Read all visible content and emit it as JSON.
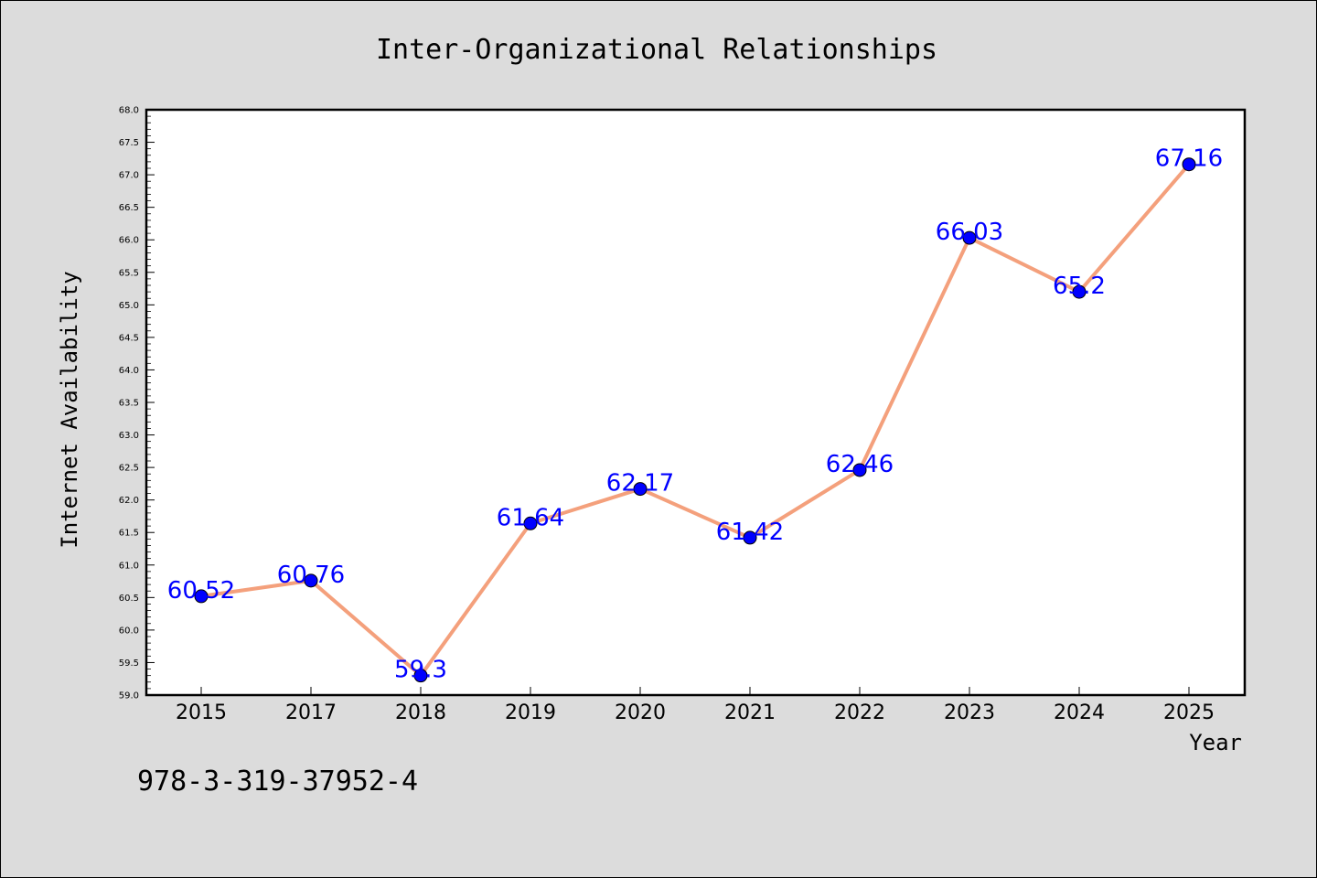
{
  "chart_data": {
    "type": "line",
    "title": "Inter-Organizational Relationships",
    "xlabel": "Year",
    "ylabel": "Internet Availability",
    "categories": [
      "2015",
      "2017",
      "2018",
      "2019",
      "2020",
      "2021",
      "2022",
      "2023",
      "2024",
      "2025"
    ],
    "series": [
      {
        "values": [
          60.52,
          60.76,
          59.3,
          61.64,
          62.17,
          61.42,
          62.46,
          66.03,
          65.2,
          67.16
        ],
        "data_labels": [
          "60.52",
          "60.76",
          "59.3",
          "61.64",
          "62.17",
          "61.42",
          "62.46",
          "66.03",
          "65.2",
          "67.16"
        ]
      }
    ],
    "ylim": [
      59.0,
      68.0
    ],
    "yticks": [
      "59.0",
      "59.5",
      "60.0",
      "60.5",
      "61.0",
      "61.5",
      "62.0",
      "62.5",
      "63.0",
      "63.5",
      "64.0",
      "64.5",
      "65.0",
      "65.5",
      "66.0",
      "66.5",
      "67.0",
      "67.5",
      "68.0"
    ],
    "grid": false,
    "line_color": "#f4a07c",
    "marker_color": "#0000ff",
    "label_color": "#0000ff"
  },
  "footer": {
    "text": "978-3-319-37952-4"
  }
}
